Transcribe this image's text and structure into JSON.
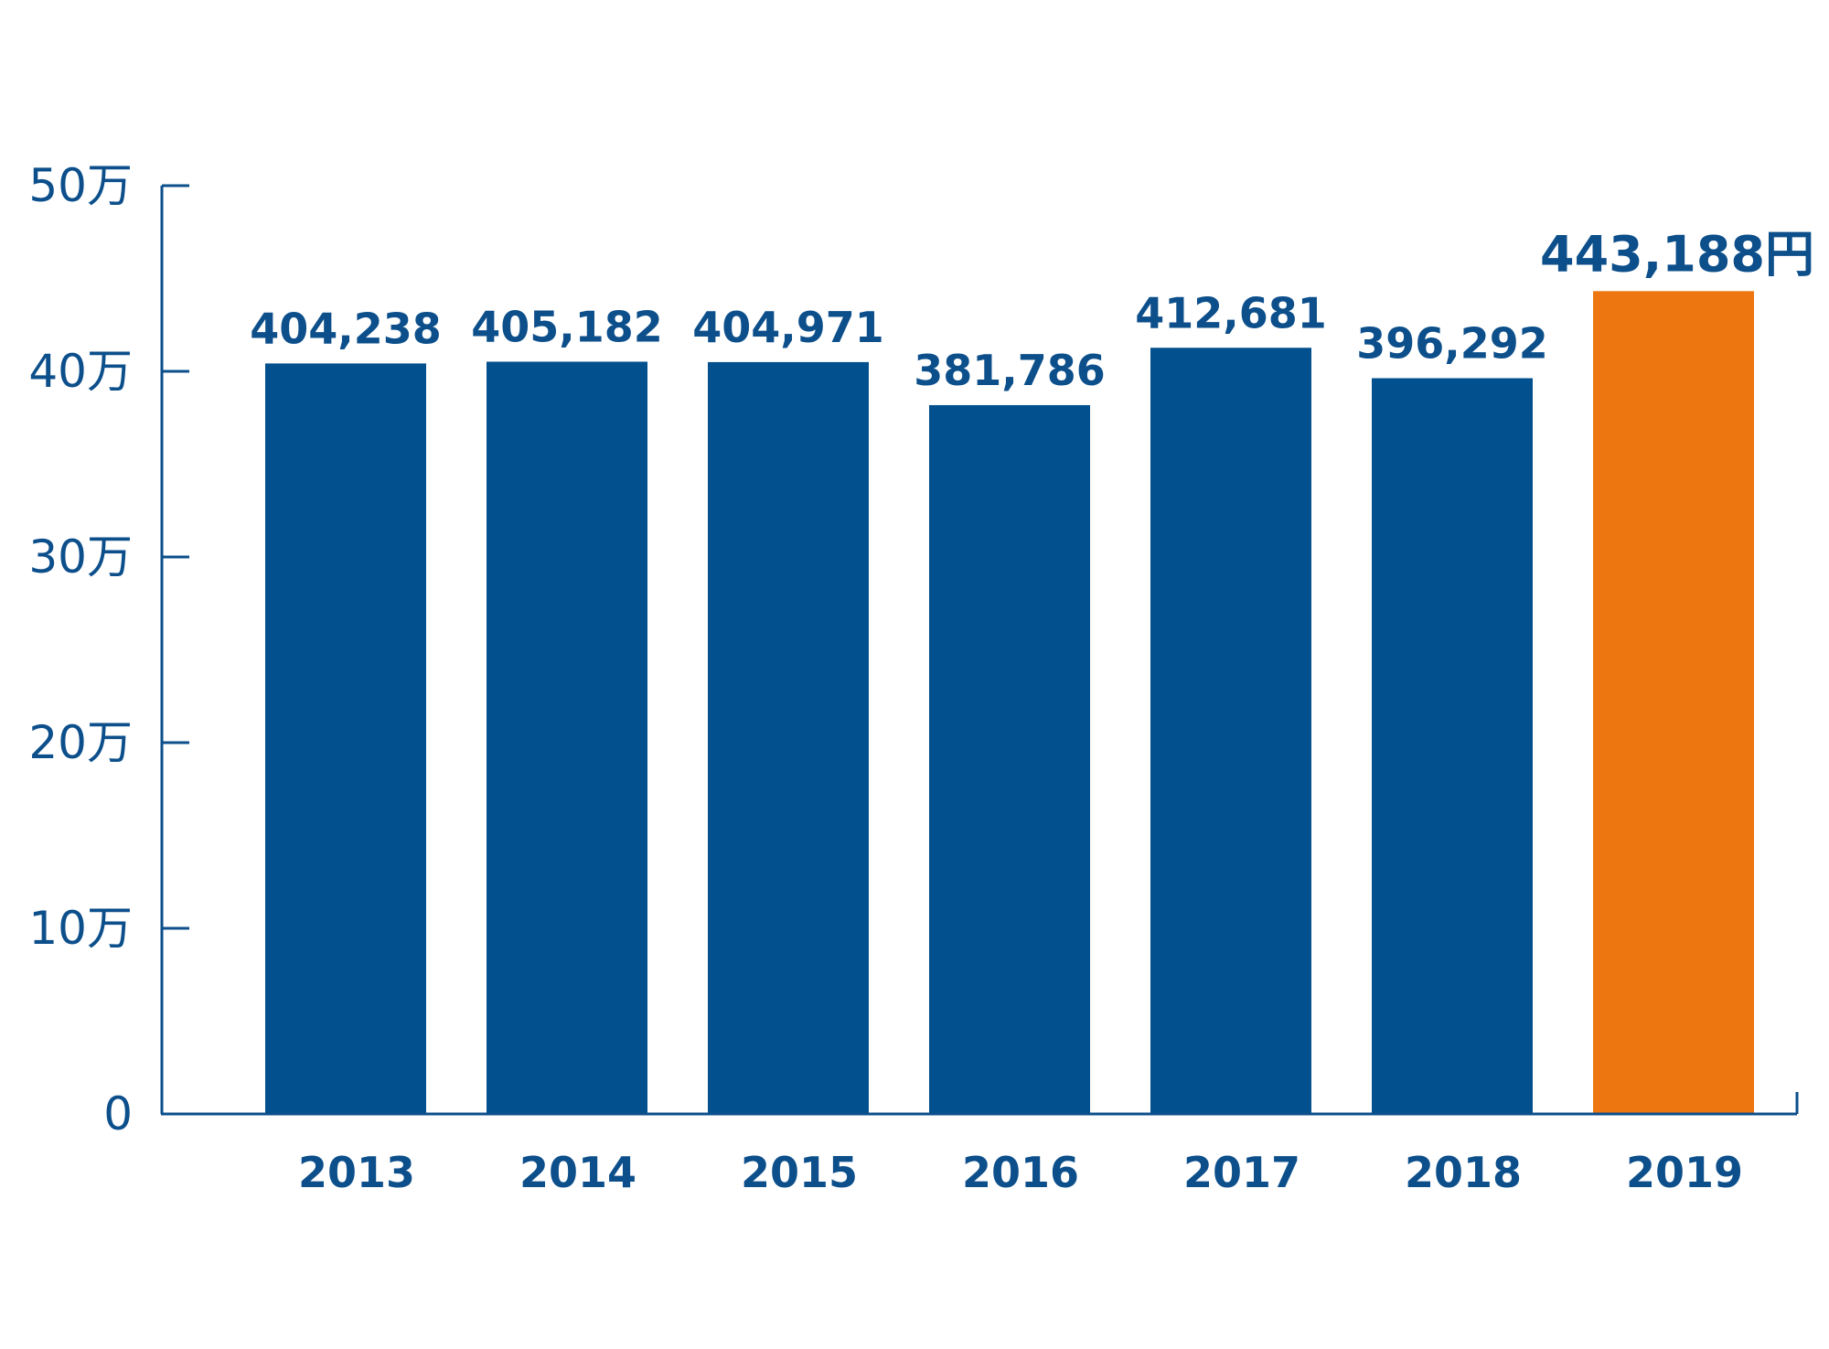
{
  "chart_data": {
    "type": "bar",
    "categories": [
      "2013",
      "2014",
      "2015",
      "2016",
      "2017",
      "2018",
      "2019"
    ],
    "values": [
      404238,
      405182,
      404971,
      381786,
      412681,
      396292,
      443188
    ],
    "value_labels": [
      "404,238",
      "405,182",
      "404,971",
      "381,786",
      "412,681",
      "396,292",
      "443,188円"
    ],
    "highlight_index": 6,
    "ylim": [
      0,
      500000
    ],
    "yticks": [
      0,
      100000,
      200000,
      300000,
      400000,
      500000
    ],
    "ytick_labels": [
      "0",
      "10万",
      "20万",
      "30万",
      "40万",
      "50万"
    ],
    "grid": false,
    "legend": "none",
    "colors": {
      "bar": "#02508e",
      "highlight_bar": "#ee7611",
      "axis": "#0c4f8b",
      "text": "#0c4f8b"
    }
  }
}
